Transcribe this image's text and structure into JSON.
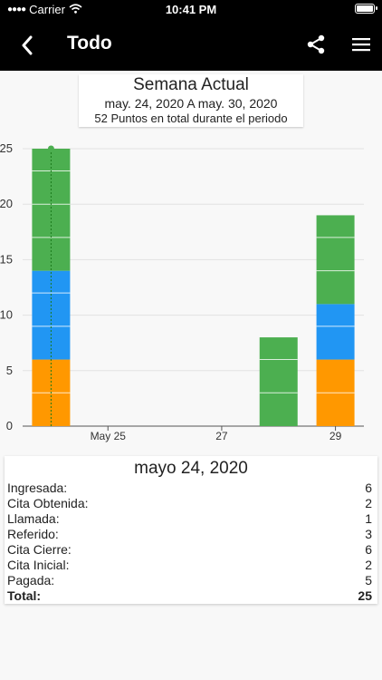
{
  "status_bar": {
    "carrier": "Carrier",
    "time": "10:41 PM"
  },
  "nav": {
    "title": "Todo"
  },
  "header": {
    "title": "Semana Actual",
    "range": "may. 24, 2020 A may. 30, 2020",
    "total": "52 Puntos en total durante el periodo"
  },
  "chart_data": {
    "type": "bar",
    "stacked": true,
    "categories": [
      "may 24",
      "may 25",
      "may 26",
      "may 27",
      "may 28",
      "may 29"
    ],
    "x_tick_labels": [
      "",
      "May 25",
      "",
      "27",
      "",
      "29"
    ],
    "segments": [
      [
        {
          "value": 6,
          "color": "#ff9800"
        },
        {
          "value": 8,
          "color": "#2196f3"
        },
        {
          "value": 11,
          "color": "#4caf50"
        }
      ],
      [],
      [],
      [],
      [
        {
          "value": 8,
          "color": "#4caf50"
        }
      ],
      [
        {
          "value": 6,
          "color": "#ff9800"
        },
        {
          "value": 5,
          "color": "#2196f3"
        },
        {
          "value": 8,
          "color": "#4caf50"
        }
      ]
    ],
    "y_ticks": [
      "0",
      "5",
      "10",
      "15",
      "20",
      "25"
    ],
    "ylim": [
      0,
      25
    ],
    "grid": true,
    "highlight_category": "may 24",
    "highlight_color": "#4caf50"
  },
  "detail": {
    "title": "mayo 24, 2020",
    "rows": [
      {
        "label": "Ingresada:",
        "value": "6"
      },
      {
        "label": "Cita Obtenida:",
        "value": "2"
      },
      {
        "label": "Llamada:",
        "value": "1"
      },
      {
        "label": "Referido:",
        "value": "3"
      },
      {
        "label": "Cita Cierre:",
        "value": "6"
      },
      {
        "label": "Cita Inicial:",
        "value": "2"
      },
      {
        "label": "Pagada:",
        "value": "5"
      }
    ],
    "total": {
      "label": "Total:",
      "value": "25"
    }
  }
}
